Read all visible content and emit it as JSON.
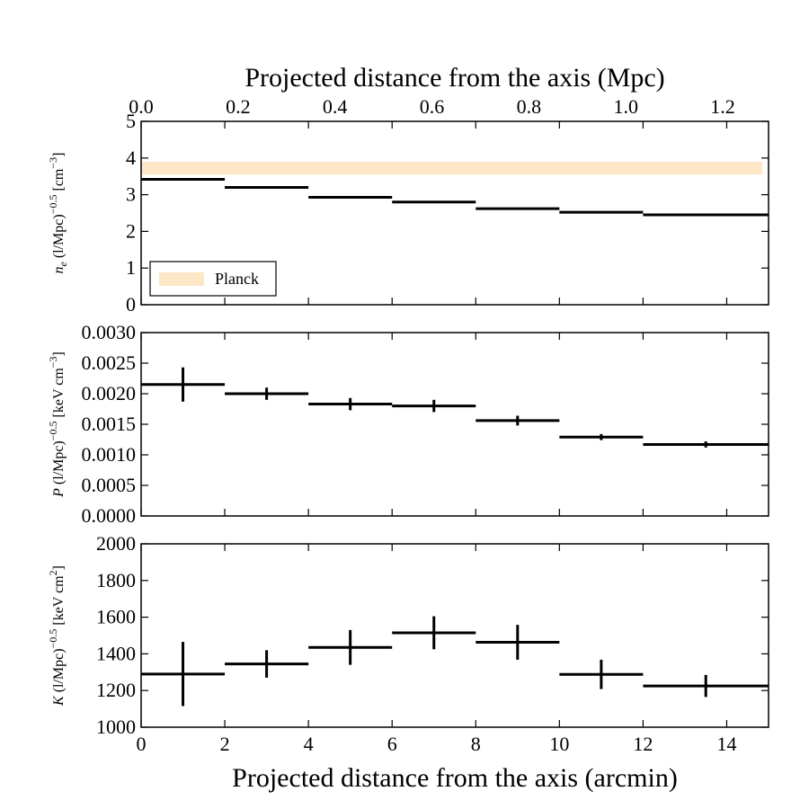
{
  "chart_data": {
    "type": "line",
    "x_axis": {
      "label": "Projected distance from the axis (arcmin)",
      "range": [
        0,
        15
      ],
      "ticks": [
        0,
        2,
        4,
        6,
        8,
        10,
        12,
        14
      ],
      "tick_labels": [
        "0",
        "2",
        "4",
        "6",
        "8",
        "10",
        "12",
        "14"
      ]
    },
    "top_axis": {
      "label": "Projected distance from the axis (Mpc)",
      "mpc_per_arcmin": 0.0863,
      "ticks": [
        0.0,
        0.2,
        0.4,
        0.6,
        0.8,
        1.0,
        1.2
      ],
      "tick_labels": [
        "0.0",
        "0.2",
        "0.4",
        "0.6",
        "0.8",
        "1.0",
        "1.2"
      ]
    },
    "panels": [
      {
        "id": "ne",
        "ylabel": "n_e (l/Mpc)^−0.5 [cm^−3]",
        "ylabel_parts": {
          "var": "n",
          "sub": "e",
          "base": " (l/Mpc)",
          "exp": "−0.5",
          "unit": " [cm",
          "unit_exp": "−3",
          "close": "]"
        },
        "ylim": [
          0,
          5
        ],
        "yticks": [
          0,
          1,
          2,
          3,
          4,
          5
        ],
        "ytick_labels": [
          "0",
          "1",
          "2",
          "3",
          "4",
          "5"
        ],
        "band": {
          "name": "Planck",
          "y_low": 3.55,
          "y_high": 3.9,
          "x_low": 0,
          "x_high": 14.85,
          "color": "#fde7c6"
        },
        "legend": {
          "label": "Planck",
          "position": "lower-left"
        },
        "series": [
          {
            "x_low": 0,
            "x_high": 2,
            "x_err_at": 1,
            "y": 3.42,
            "yerr": 0
          },
          {
            "x_low": 2,
            "x_high": 4,
            "x_err_at": 3,
            "y": 3.2,
            "yerr": 0
          },
          {
            "x_low": 4,
            "x_high": 6,
            "x_err_at": 5,
            "y": 2.93,
            "yerr": 0
          },
          {
            "x_low": 6,
            "x_high": 8,
            "x_err_at": 7,
            "y": 2.8,
            "yerr": 0
          },
          {
            "x_low": 8,
            "x_high": 10,
            "x_err_at": 9,
            "y": 2.62,
            "yerr": 0
          },
          {
            "x_low": 10,
            "x_high": 12,
            "x_err_at": 11,
            "y": 2.52,
            "yerr": 0
          },
          {
            "x_low": 12,
            "x_high": 15,
            "x_err_at": 13.5,
            "y": 2.45,
            "yerr": 0
          }
        ]
      },
      {
        "id": "P",
        "ylabel": "P (l/Mpc)^−0.5 [keV cm^−3]",
        "ylabel_parts": {
          "var": "P",
          "sub": "",
          "base": " (l/Mpc)",
          "exp": "−0.5",
          "unit": " [keV cm",
          "unit_exp": "−3",
          "close": "]"
        },
        "ylim": [
          0,
          0.003
        ],
        "yticks": [
          0,
          0.0005,
          0.001,
          0.0015,
          0.002,
          0.0025,
          0.003
        ],
        "ytick_labels": [
          "0.0000",
          "0.0005",
          "0.0010",
          "0.0015",
          "0.0020",
          "0.0025",
          "0.0030"
        ],
        "series": [
          {
            "x_low": 0,
            "x_high": 2,
            "x_err_at": 1,
            "y": 0.00215,
            "yerr": 0.00028
          },
          {
            "x_low": 2,
            "x_high": 4,
            "x_err_at": 3,
            "y": 0.002,
            "yerr": 0.0001
          },
          {
            "x_low": 4,
            "x_high": 6,
            "x_err_at": 5,
            "y": 0.00183,
            "yerr": 0.0001
          },
          {
            "x_low": 6,
            "x_high": 8,
            "x_err_at": 7,
            "y": 0.0018,
            "yerr": 0.0001
          },
          {
            "x_low": 8,
            "x_high": 10,
            "x_err_at": 9,
            "y": 0.00156,
            "yerr": 8e-05
          },
          {
            "x_low": 10,
            "x_high": 12,
            "x_err_at": 11,
            "y": 0.00129,
            "yerr": 5e-05
          },
          {
            "x_low": 12,
            "x_high": 15,
            "x_err_at": 13.5,
            "y": 0.00117,
            "yerr": 5e-05
          }
        ]
      },
      {
        "id": "K",
        "ylabel": "K (l/Mpc)^−0.5 [keV cm^2]",
        "ylabel_parts": {
          "var": "K",
          "sub": "",
          "base": " (l/Mpc)",
          "exp": "−0.5",
          "unit": " [keV cm",
          "unit_exp": "2",
          "close": "]"
        },
        "ylim": [
          1000,
          2000
        ],
        "yticks": [
          1000,
          1200,
          1400,
          1600,
          1800,
          2000
        ],
        "ytick_labels": [
          "1000",
          "1200",
          "1400",
          "1600",
          "1800",
          "2000"
        ],
        "series": [
          {
            "x_low": 0,
            "x_high": 2,
            "x_err_at": 1,
            "y": 1290,
            "yerr": 175
          },
          {
            "x_low": 2,
            "x_high": 4,
            "x_err_at": 3,
            "y": 1345,
            "yerr": 75
          },
          {
            "x_low": 4,
            "x_high": 6,
            "x_err_at": 5,
            "y": 1435,
            "yerr": 95
          },
          {
            "x_low": 6,
            "x_high": 8,
            "x_err_at": 7,
            "y": 1515,
            "yerr": 90
          },
          {
            "x_low": 8,
            "x_high": 10,
            "x_err_at": 9,
            "y": 1463,
            "yerr": 95
          },
          {
            "x_low": 10,
            "x_high": 12,
            "x_err_at": 11,
            "y": 1288,
            "yerr": 80
          },
          {
            "x_low": 12,
            "x_high": 15,
            "x_err_at": 13.5,
            "y": 1225,
            "yerr": 60
          }
        ]
      }
    ]
  }
}
